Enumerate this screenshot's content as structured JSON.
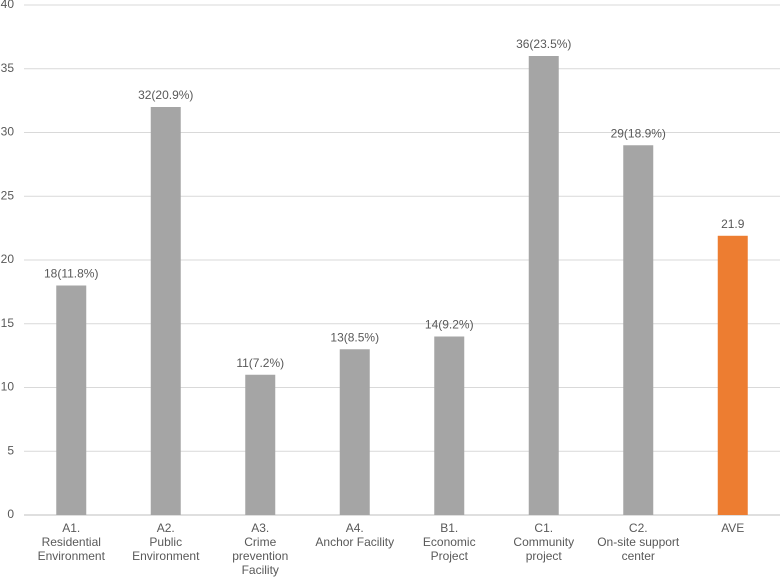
{
  "chart_data": {
    "type": "bar",
    "categories": [
      "A1.\nResidential\nEnvironment",
      "A2.\nPublic\nEnvironment",
      "A3.\nCrime\nprevention\nFacility",
      "A4.\nAnchor Facility",
      "B1.\nEconomic\nProject",
      "C1.\nCommunity\nproject",
      "C2.\nOn-site support\ncenter",
      "AVE"
    ],
    "values": [
      18,
      32,
      11,
      13,
      14,
      36,
      29,
      21.9
    ],
    "value_labels": [
      "18(11.8%)",
      "32(20.9%)",
      "11(7.2%)",
      "13(8.5%)",
      "14(9.2%)",
      "36(23.5%)",
      "29(18.9%)",
      "21.9"
    ],
    "colors": [
      "#a5a5a5",
      "#a5a5a5",
      "#a5a5a5",
      "#a5a5a5",
      "#a5a5a5",
      "#a5a5a5",
      "#a5a5a5",
      "#ed7d31"
    ],
    "ylim": [
      0,
      40
    ],
    "yticks": [
      0,
      5,
      10,
      15,
      20,
      25,
      30,
      35,
      40
    ],
    "grid": true
  }
}
